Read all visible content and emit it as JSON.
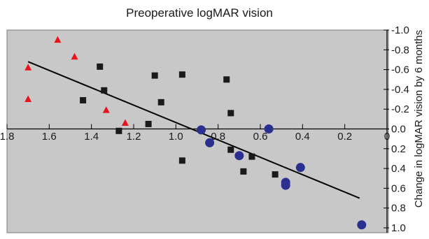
{
  "chart_data": {
    "type": "scatter",
    "title": "Preoperative logMAR vision",
    "xlabel": "",
    "ylabel": "Change in logMAR vision by 6 months",
    "x_reversed": true,
    "y_reversed": true,
    "xlim": [
      1.8,
      0.0
    ],
    "ylim": [
      -1.0,
      1.0
    ],
    "x_ticks": [
      "1.8",
      "1.6",
      "1.4",
      "1.2",
      "1.0",
      "0.8",
      "0.6",
      "0.4",
      "0.2",
      "0"
    ],
    "y_ticks": [
      "-1.0",
      "-0.8",
      "-0.6",
      "-0.4",
      "-0.2",
      "0.0",
      "0.2",
      "0.4",
      "0.6",
      "0.8",
      "1.0"
    ],
    "grid": false,
    "plot_background": "#c8c8c8",
    "series": [
      {
        "marker": "triangle",
        "color": "#e8141b",
        "points": [
          {
            "x": 1.7,
            "y": -0.62
          },
          {
            "x": 1.7,
            "y": -0.3
          },
          {
            "x": 1.56,
            "y": -0.9
          },
          {
            "x": 1.48,
            "y": -0.73
          },
          {
            "x": 1.33,
            "y": -0.19
          },
          {
            "x": 1.24,
            "y": -0.06
          }
        ]
      },
      {
        "marker": "square",
        "color": "#1a1a1a",
        "points": [
          {
            "x": 1.36,
            "y": -0.63
          },
          {
            "x": 1.44,
            "y": -0.29
          },
          {
            "x": 1.34,
            "y": -0.39
          },
          {
            "x": 1.1,
            "y": -0.54
          },
          {
            "x": 0.97,
            "y": -0.55
          },
          {
            "x": 1.07,
            "y": -0.27
          },
          {
            "x": 0.76,
            "y": -0.5
          },
          {
            "x": 0.74,
            "y": -0.16
          },
          {
            "x": 1.27,
            "y": 0.02
          },
          {
            "x": 1.13,
            "y": -0.05
          },
          {
            "x": 0.97,
            "y": 0.32
          },
          {
            "x": 0.74,
            "y": 0.21
          },
          {
            "x": 0.68,
            "y": 0.43
          },
          {
            "x": 0.64,
            "y": 0.28
          },
          {
            "x": 0.53,
            "y": 0.46
          }
        ]
      },
      {
        "marker": "circle",
        "color": "#2b2f8f",
        "points": [
          {
            "x": 0.88,
            "y": 0.01
          },
          {
            "x": 0.84,
            "y": 0.14
          },
          {
            "x": 0.7,
            "y": 0.27
          },
          {
            "x": 0.56,
            "y": 0.0
          },
          {
            "x": 0.48,
            "y": 0.54
          },
          {
            "x": 0.48,
            "y": 0.57
          },
          {
            "x": 0.41,
            "y": 0.39
          },
          {
            "x": 0.12,
            "y": 0.97
          }
        ]
      }
    ],
    "trendline": {
      "x": [
        1.7,
        0.13
      ],
      "y": [
        -0.68,
        0.7
      ],
      "color": "#000000"
    }
  }
}
